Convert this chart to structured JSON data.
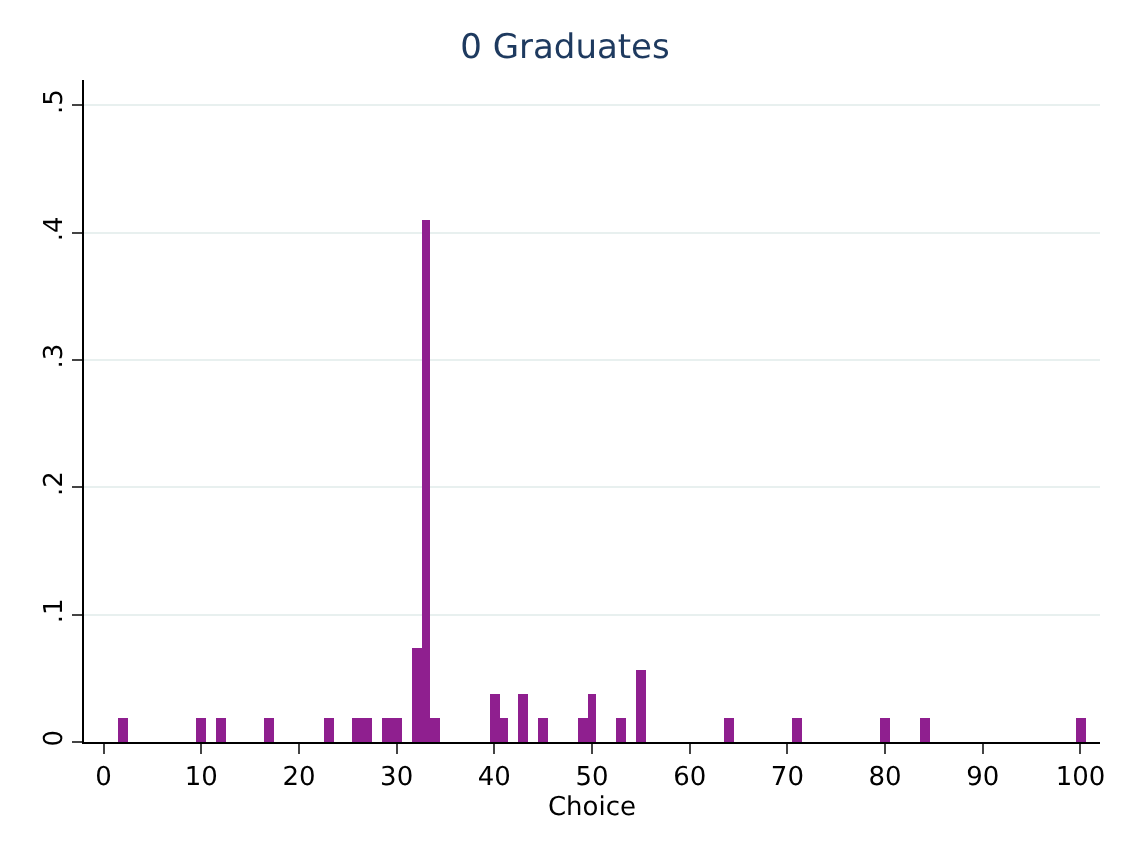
{
  "chart_data": {
    "type": "histogram",
    "title": "0 Graduates",
    "xlabel": "Choice",
    "bins": [
      1.5,
      2.5,
      3.5,
      4.5,
      5.5,
      6.5,
      7.5,
      8.5,
      9.5,
      10.5,
      11.5,
      12.5,
      13.5,
      14.5,
      15.5,
      16.5,
      17.5,
      18.5,
      19.5,
      20.5,
      21.5,
      22.5,
      23.5,
      24.5,
      25.5,
      26.5,
      27.5,
      28.5,
      29.5,
      30.5,
      31.5,
      32.5,
      33.5,
      34.5,
      35.5,
      36.5,
      37.5,
      38.5,
      39.5,
      40.5,
      41.5,
      42.5,
      43.5,
      44.5,
      45.5,
      46.5,
      47.5,
      48.5,
      49.5,
      50.5,
      51.5,
      52.5,
      53.5,
      54.5,
      55.5,
      56.5,
      57.5,
      58.5,
      59.5,
      60.5,
      61.5,
      62.5,
      63.5,
      64.5,
      65.5,
      66.5,
      67.5,
      68.5,
      69.5,
      70.5,
      71.5,
      72.5,
      73.5,
      74.5,
      75.5,
      76.5,
      77.5,
      78.5,
      79.5,
      80.5,
      81.5,
      82.5,
      83.5,
      84.5,
      85.5,
      86.5,
      87.5,
      88.5,
      89.5,
      90.5,
      91.5,
      92.5,
      93.5,
      94.5,
      95.5,
      96.5,
      97.5,
      98.5,
      99.5,
      100.5
    ],
    "values": [
      0.019,
      0,
      0,
      0,
      0,
      0,
      0,
      0,
      0.019,
      0,
      0.019,
      0,
      0,
      0,
      0,
      0.019,
      0,
      0,
      0,
      0,
      0,
      0.019,
      0,
      0,
      0.019,
      0.019,
      0,
      0.019,
      0.019,
      0,
      0.074,
      0.41,
      0.019,
      0,
      0,
      0,
      0,
      0,
      0.037,
      0.019,
      0,
      0.037,
      0,
      0.019,
      0,
      0,
      0,
      0.019,
      0.037,
      0,
      0,
      0.019,
      0,
      0.056,
      0,
      0,
      0,
      0,
      0,
      0,
      0,
      0,
      0.019,
      0,
      0,
      0,
      0,
      0,
      0,
      0.019,
      0,
      0,
      0,
      0,
      0,
      0,
      0,
      0,
      0.019,
      0,
      0,
      0,
      0.019,
      0,
      0,
      0,
      0,
      0,
      0,
      0,
      0,
      0,
      0,
      0,
      0,
      0,
      0,
      0,
      0.019
    ],
    "color": "#8f1f8f",
    "xlim": [
      -2,
      102
    ],
    "xticks": [
      0,
      10,
      20,
      30,
      40,
      50,
      60,
      70,
      80,
      90,
      100
    ],
    "ylim": [
      0,
      0.52
    ],
    "yticks": [
      0,
      {
        "value": 0.1,
        "label": ".1"
      },
      {
        "value": 0.2,
        "label": ".2"
      },
      {
        "value": 0.3,
        "label": ".3"
      },
      {
        "value": 0.4,
        "label": ".4"
      },
      {
        "value": 0.5,
        "label": ".5"
      }
    ],
    "grid": "y"
  }
}
